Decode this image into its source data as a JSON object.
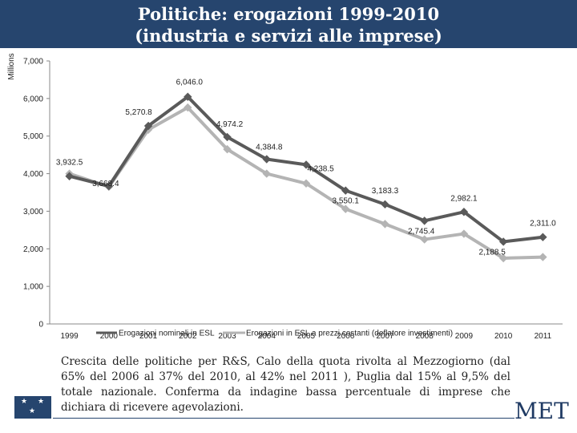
{
  "header": {
    "title_line1": "Politiche: erogazioni 1999-2010",
    "title_line2": "(industria e servizi alle imprese)",
    "background_color": "#26456e"
  },
  "chart_data": {
    "type": "line",
    "ylabel": "Millions",
    "ylim": [
      0,
      7000
    ],
    "yticks": [
      0,
      1000,
      2000,
      3000,
      4000,
      5000,
      6000,
      7000
    ],
    "ytick_labels": [
      "0",
      "1,000",
      "2,000",
      "3,000",
      "4,000",
      "5,000",
      "6,000",
      "7,000"
    ],
    "categories": [
      "1999",
      "2000",
      "2001",
      "2002",
      "2003",
      "2004",
      "2005",
      "2006",
      "2007",
      "2008",
      "2009",
      "2010",
      "2011"
    ],
    "series": [
      {
        "name": "Erogazioni nominali in ESL",
        "color": "#5a5a5a",
        "values": [
          3932.5,
          3668.4,
          5270.8,
          6046.0,
          4974.2,
          4384.8,
          4238.5,
          3550.1,
          3183.3,
          2745.4,
          2982.1,
          2188.5,
          2311.0
        ],
        "data_labels": [
          "3,932.5",
          "3,668.4",
          "5,270.8",
          "6,046.0",
          "4,974.2",
          "4,384.8",
          "4,238.5",
          "3,550.1",
          "3,183.3",
          "2,745.4",
          "2,982.1",
          "2,188.5",
          "2,311.0"
        ]
      },
      {
        "name": "Erogazioni in ESL a prezzi costanti (deflatore investimenti)",
        "color": "#b4b4b4",
        "values": [
          4000,
          3650,
          5170,
          5760,
          4650,
          4000,
          3740,
          3060,
          2660,
          2250,
          2400,
          1750,
          1780
        ]
      }
    ],
    "legend_position": "bottom"
  },
  "caption": "Crescita delle politiche per R&S, Calo della quota rivolta al Mezzogiorno (dal 65% del 2006 al 37% del 2010, al 42% nel 2011 ), Puglia dal 15% al 9,5% del totale nazionale. Conferma da indagine bassa percentuale di imprese che dichiara di ricevere agevolazioni.",
  "logo": {
    "text": "MET"
  },
  "flag": {
    "star": "★"
  }
}
